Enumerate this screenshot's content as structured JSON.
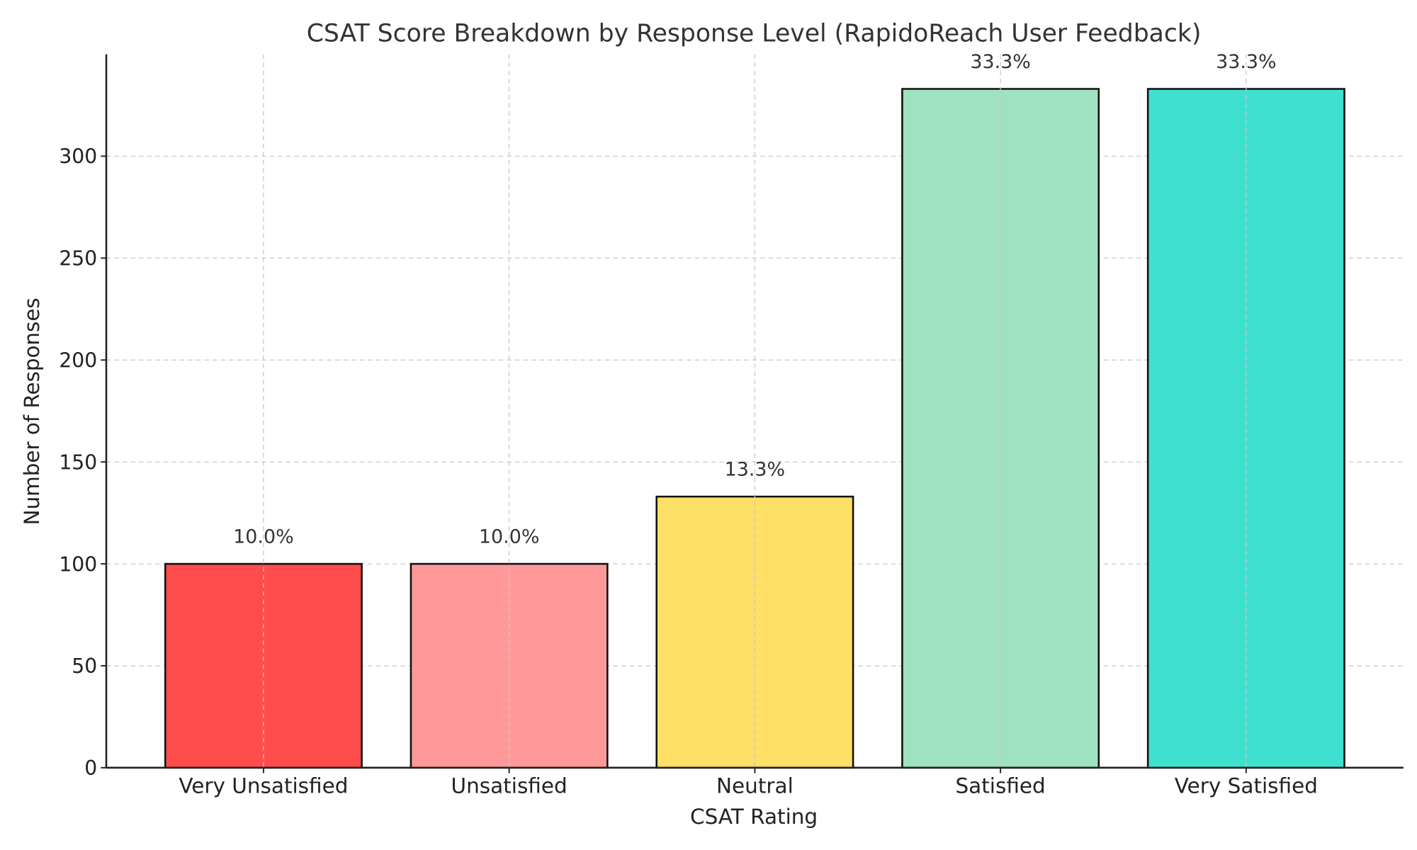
{
  "chart_data": {
    "type": "bar",
    "title": "CSAT Score Breakdown by Response Level (RapidoReach User Feedback)",
    "xlabel": "CSAT Rating",
    "ylabel": "Number of Responses",
    "categories": [
      "Very Unsatisfied",
      "Unsatisfied",
      "Neutral",
      "Satisfied",
      "Very Satisfied"
    ],
    "values": [
      100,
      100,
      133,
      333,
      333
    ],
    "data_labels": [
      "10.0%",
      "10.0%",
      "13.3%",
      "33.3%",
      "33.3%"
    ],
    "colors": [
      "#FF4C4C",
      "#FF9999",
      "#FFE066",
      "#9FE2BF",
      "#40E0D0"
    ],
    "ylim": [
      0,
      350
    ],
    "yticks": [
      0,
      50,
      100,
      150,
      200,
      250,
      300
    ],
    "grid": true
  }
}
